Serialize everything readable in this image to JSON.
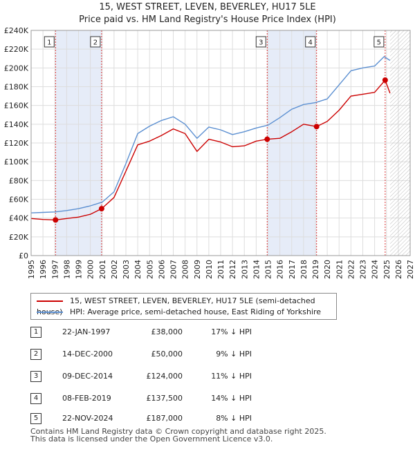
{
  "header": {
    "line1": "15, WEST STREET, LEVEN, BEVERLEY, HU17 5LE",
    "line2": "Price paid vs. HM Land Registry's House Price Index (HPI)"
  },
  "colors": {
    "price_line": "#cc0000",
    "hpi_line": "#5b8fd1",
    "shade": "#e6ecf8",
    "grid": "#dddddd"
  },
  "chart_data": {
    "type": "line",
    "title": "15, WEST STREET, LEVEN, BEVERLEY, HU17 5LE — Price paid vs. HM Land Registry's House Price Index (HPI)",
    "xlabel": "",
    "ylabel": "",
    "xlim": [
      1995,
      2027
    ],
    "ylim": [
      0,
      240000
    ],
    "xticks": [
      "1995",
      "1996",
      "1997",
      "1998",
      "1999",
      "2000",
      "2001",
      "2002",
      "2003",
      "2004",
      "2005",
      "2006",
      "2007",
      "2008",
      "2009",
      "2010",
      "2011",
      "2012",
      "2013",
      "2014",
      "2015",
      "2016",
      "2017",
      "2018",
      "2019",
      "2020",
      "2021",
      "2022",
      "2023",
      "2024",
      "2025",
      "2026",
      "2027"
    ],
    "yticks": [
      "£0",
      "£20K",
      "£40K",
      "£60K",
      "£80K",
      "£100K",
      "£120K",
      "£140K",
      "£160K",
      "£180K",
      "£200K",
      "£220K",
      "£240K"
    ],
    "grid": true,
    "series": [
      {
        "name": "15, WEST STREET, LEVEN, BEVERLEY, HU17 5LE (semi-detached house)",
        "color": "#cc0000",
        "points": [
          [
            1995.0,
            39500
          ],
          [
            1996.0,
            38500
          ],
          [
            1997.06,
            38000
          ],
          [
            1998.0,
            39500
          ],
          [
            1999.0,
            41000
          ],
          [
            2000.0,
            44000
          ],
          [
            2000.95,
            50000
          ],
          [
            2002.0,
            62000
          ],
          [
            2003.0,
            90000
          ],
          [
            2004.0,
            118000
          ],
          [
            2005.0,
            122000
          ],
          [
            2006.0,
            128000
          ],
          [
            2007.0,
            135000
          ],
          [
            2008.0,
            130000
          ],
          [
            2009.0,
            111000
          ],
          [
            2010.0,
            124000
          ],
          [
            2011.0,
            121000
          ],
          [
            2012.0,
            116000
          ],
          [
            2013.0,
            117000
          ],
          [
            2014.0,
            122000
          ],
          [
            2014.93,
            124000
          ],
          [
            2016.0,
            125000
          ],
          [
            2017.0,
            132000
          ],
          [
            2018.0,
            140000
          ],
          [
            2019.1,
            137500
          ],
          [
            2020.0,
            143000
          ],
          [
            2021.0,
            155000
          ],
          [
            2022.0,
            170000
          ],
          [
            2023.0,
            172000
          ],
          [
            2024.0,
            174000
          ],
          [
            2024.89,
            187000
          ],
          [
            2025.3,
            173000
          ]
        ]
      },
      {
        "name": "HPI: Average price, semi-detached house, East Riding of Yorkshire",
        "color": "#5b8fd1",
        "points": [
          [
            1995.0,
            45500
          ],
          [
            1996.0,
            46000
          ],
          [
            1997.0,
            46500
          ],
          [
            1998.0,
            48000
          ],
          [
            1999.0,
            50000
          ],
          [
            2000.0,
            53000
          ],
          [
            2001.0,
            57000
          ],
          [
            2002.0,
            68000
          ],
          [
            2003.0,
            98000
          ],
          [
            2004.0,
            130000
          ],
          [
            2005.0,
            138000
          ],
          [
            2006.0,
            144000
          ],
          [
            2007.0,
            148000
          ],
          [
            2008.0,
            140000
          ],
          [
            2009.0,
            125000
          ],
          [
            2010.0,
            137000
          ],
          [
            2011.0,
            134000
          ],
          [
            2012.0,
            129000
          ],
          [
            2013.0,
            132000
          ],
          [
            2014.0,
            136000
          ],
          [
            2015.0,
            139000
          ],
          [
            2016.0,
            147000
          ],
          [
            2017.0,
            156000
          ],
          [
            2018.0,
            161000
          ],
          [
            2019.0,
            163000
          ],
          [
            2020.0,
            167000
          ],
          [
            2021.0,
            182000
          ],
          [
            2022.0,
            197000
          ],
          [
            2023.0,
            200000
          ],
          [
            2024.0,
            202000
          ],
          [
            2024.8,
            212000
          ],
          [
            2025.3,
            208000
          ]
        ]
      }
    ],
    "sales": [
      {
        "label": "1",
        "x": 1997.06,
        "y": 38000
      },
      {
        "label": "2",
        "x": 2000.95,
        "y": 50000
      },
      {
        "label": "3",
        "x": 2014.93,
        "y": 124000
      },
      {
        "label": "4",
        "x": 2019.1,
        "y": 137500
      },
      {
        "label": "5",
        "x": 2024.89,
        "y": 187000
      }
    ],
    "shaded_ranges": [
      [
        1997.06,
        2000.95
      ],
      [
        2014.93,
        2019.1
      ]
    ],
    "hatched_range": [
      2025.3,
      2027
    ]
  },
  "legend": {
    "price_label": "15, WEST STREET, LEVEN, BEVERLEY, HU17 5LE (semi-detached house)",
    "hpi_label": "HPI: Average price, semi-detached house, East Riding of Yorkshire"
  },
  "events": [
    {
      "num": "1",
      "date": "22-JAN-1997",
      "price": "£38,000",
      "hpi": "17% ↓ HPI"
    },
    {
      "num": "2",
      "date": "14-DEC-2000",
      "price": "£50,000",
      "hpi": "9% ↓ HPI"
    },
    {
      "num": "3",
      "date": "09-DEC-2014",
      "price": "£124,000",
      "hpi": "11% ↓ HPI"
    },
    {
      "num": "4",
      "date": "08-FEB-2019",
      "price": "£137,500",
      "hpi": "14% ↓ HPI"
    },
    {
      "num": "5",
      "date": "22-NOV-2024",
      "price": "£187,000",
      "hpi": "8% ↓ HPI"
    }
  ],
  "footer": {
    "line1": "Contains HM Land Registry data © Crown copyright and database right 2025.",
    "line2": "This data is licensed under the Open Government Licence v3.0."
  }
}
